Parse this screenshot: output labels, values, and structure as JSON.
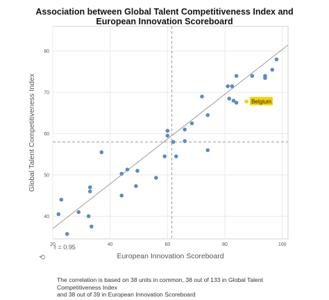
{
  "title_line1": "Association between Global Talent Competitiveness Index and",
  "title_line2": "European Innovation Scoreboard",
  "correlation_text": "r = 0.95",
  "note_line1": "The correlation is based on 38 units in common, 38 out of 133 in Global Talent Competitiveness Index",
  "note_line2": "and 38 out of 39 in European Innovation Scoreboard",
  "refresh_icon": "refresh-icon",
  "colors": {
    "point": "#5b8bc2",
    "highlight": "#f5d000",
    "line": "#9a9a9a",
    "grid": "#e8e8e8"
  },
  "chart_data": {
    "type": "scatter",
    "xlabel": "European Innovation Scoreboard",
    "ylabel": "Global Talent Competitiveness Index",
    "xlim": [
      20,
      102
    ],
    "ylim": [
      34.5,
      86
    ],
    "xticks": [
      20,
      40,
      60,
      80,
      100
    ],
    "yticks": [
      40,
      50,
      60,
      70,
      80
    ],
    "grid": true,
    "mean_x": 61.5,
    "mean_y": 58,
    "regression": {
      "x": [
        20,
        102
      ],
      "y": [
        37,
        81.5
      ]
    },
    "points": [
      {
        "x": 22,
        "y": 40.5
      },
      {
        "x": 23,
        "y": 44
      },
      {
        "x": 25,
        "y": 35.7
      },
      {
        "x": 29,
        "y": 41
      },
      {
        "x": 32.5,
        "y": 40
      },
      {
        "x": 33,
        "y": 46
      },
      {
        "x": 33,
        "y": 47
      },
      {
        "x": 33.5,
        "y": 37.5
      },
      {
        "x": 37,
        "y": 55.5
      },
      {
        "x": 44,
        "y": 45
      },
      {
        "x": 44,
        "y": 50.3
      },
      {
        "x": 46,
        "y": 51.3
      },
      {
        "x": 49,
        "y": 47.3
      },
      {
        "x": 49.5,
        "y": 51
      },
      {
        "x": 56,
        "y": 49.3
      },
      {
        "x": 59,
        "y": 54.5
      },
      {
        "x": 60,
        "y": 59.5
      },
      {
        "x": 60,
        "y": 60.7
      },
      {
        "x": 62,
        "y": 58
      },
      {
        "x": 63,
        "y": 54.5
      },
      {
        "x": 66,
        "y": 58.2
      },
      {
        "x": 66,
        "y": 61
      },
      {
        "x": 68.5,
        "y": 62.5
      },
      {
        "x": 72,
        "y": 69
      },
      {
        "x": 74,
        "y": 64.5
      },
      {
        "x": 74,
        "y": 56
      },
      {
        "x": 81,
        "y": 71.5
      },
      {
        "x": 81.5,
        "y": 68.5
      },
      {
        "x": 82.5,
        "y": 71.5
      },
      {
        "x": 83,
        "y": 68
      },
      {
        "x": 84,
        "y": 74
      },
      {
        "x": 84,
        "y": 67.5
      },
      {
        "x": 89.5,
        "y": 74
      },
      {
        "x": 94,
        "y": 73.5
      },
      {
        "x": 94,
        "y": 74
      },
      {
        "x": 96.5,
        "y": 75.5
      },
      {
        "x": 98,
        "y": 78
      }
    ],
    "highlight": {
      "label": "Belgium",
      "x": 87.5,
      "y": 67.8
    }
  }
}
